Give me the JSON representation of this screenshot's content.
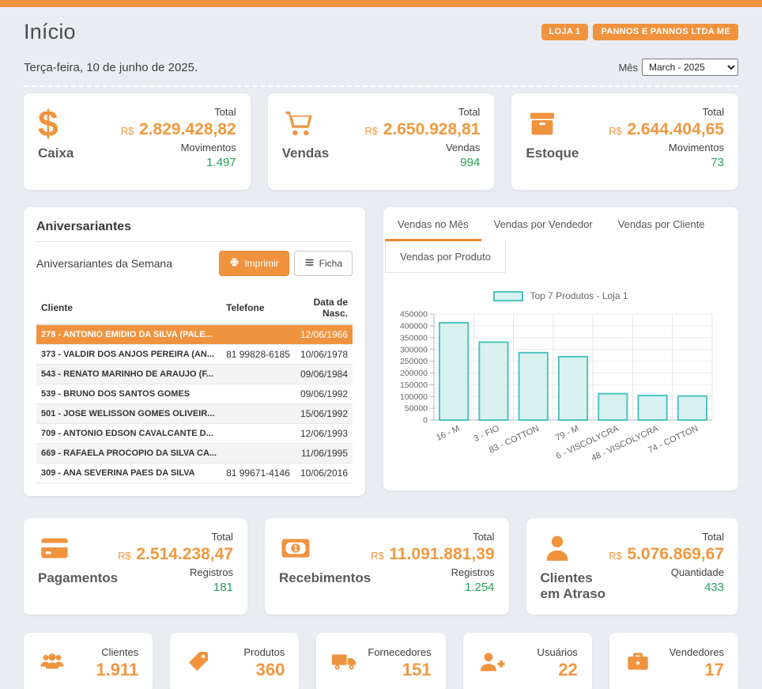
{
  "accent_color": "#f0933e",
  "green_color": "#28a05a",
  "header": {
    "title": "Início",
    "badges": [
      "LOJA 1",
      "PANNOS E PANNOS LTDA ME"
    ],
    "date": "Terça-feira, 10 de junho de 2025.",
    "month_label": "Mês",
    "month_value": "March - 2025"
  },
  "stats_top": [
    {
      "name": "Caixa",
      "icon": "dollar-icon",
      "total_label": "Total",
      "currency": "R$",
      "total": "2.829.428,82",
      "count_label": "Movimentos",
      "count": "1.497"
    },
    {
      "name": "Vendas",
      "icon": "cart-icon",
      "total_label": "Total",
      "currency": "R$",
      "total": "2.650.928,81",
      "count_label": "Vendas",
      "count": "994"
    },
    {
      "name": "Estoque",
      "icon": "box-icon",
      "total_label": "Total",
      "currency": "R$",
      "total": "2.644.404,65",
      "count_label": "Movimentos",
      "count": "73"
    }
  ],
  "stats_bottom": [
    {
      "name": "Pagamentos",
      "icon": "credit-card-icon",
      "total_label": "Total",
      "currency": "R$",
      "total": "2.514.238,47",
      "count_label": "Registros",
      "count": "181"
    },
    {
      "name": "Recebimentos",
      "icon": "money-icon",
      "total_label": "Total",
      "currency": "R$",
      "total": "11.091.881,39",
      "count_label": "Registros",
      "count": "1.254"
    },
    {
      "name": "Clientes em Atraso",
      "icon": "user-icon",
      "total_label": "Total",
      "currency": "R$",
      "total": "5.076.869,67",
      "count_label": "Quantidade",
      "count": "433"
    }
  ],
  "birthdays": {
    "title": "Aniversariantes",
    "subtitle": "Aniversariantes da Semana",
    "print_button": "Imprimir",
    "ficha_button": "Ficha",
    "columns": [
      "Cliente",
      "Telefone",
      "Data de Nasc."
    ],
    "rows": [
      {
        "client": "278 - ANTONIO EMIDIO DA SILVA (PALE...",
        "phone": "",
        "birth": "12/06/1966",
        "selected": true
      },
      {
        "client": "373 - VALDIR DOS ANJOS PEREIRA (AN...",
        "phone": "81 99828-6185",
        "birth": "10/06/1978",
        "selected": false
      },
      {
        "client": "543 - RENATO MARINHO DE ARAUJO (F...",
        "phone": "",
        "birth": "09/06/1984",
        "selected": false
      },
      {
        "client": "539 - BRUNO DOS SANTOS GOMES",
        "phone": "",
        "birth": "09/06/1992",
        "selected": false
      },
      {
        "client": "501 - JOSE WELISSON GOMES OLIVEIR...",
        "phone": "",
        "birth": "15/06/1992",
        "selected": false
      },
      {
        "client": "709 - ANTONIO EDSON CAVALCANTE D...",
        "phone": "",
        "birth": "12/06/1993",
        "selected": false
      },
      {
        "client": "669 - RAFAELA PROCOPIO DA SILVA CA...",
        "phone": "",
        "birth": "11/06/1995",
        "selected": false
      },
      {
        "client": "309 - ANA SEVERINA PAES DA SILVA",
        "phone": "81 99671-4146",
        "birth": "10/06/2016",
        "selected": false
      }
    ]
  },
  "sales_panel": {
    "tabs": [
      "Vendas no Mês",
      "Vendas por Vendedor",
      "Vendas por Cliente"
    ],
    "active_tab": "Vendas no Mês",
    "subtab": "Vendas por Produto"
  },
  "chart_data": {
    "type": "bar",
    "title": "Top 7 Produtos - Loja 1",
    "legend_label": "Top 7 Produtos - Loja 1",
    "legend_position": "top",
    "categories": [
      "16 - M",
      "3 - FIO",
      "83 - COTTON",
      "79 - M",
      "6 - VISCOLYCRA",
      "48 - VISCOLYCRA",
      "74 - COTTON"
    ],
    "values": [
      413000,
      331000,
      286000,
      269000,
      112000,
      104000,
      102000
    ],
    "xlabel": "",
    "ylabel": "",
    "ylim": [
      0,
      450000
    ],
    "ytick_step": 50000,
    "grid": true,
    "bar_fill": "#d9f2f0",
    "bar_border": "#4fc3c0"
  },
  "mini_cards": [
    {
      "label": "Clientes",
      "value": "1.911",
      "icon": "users-icon"
    },
    {
      "label": "Produtos",
      "value": "360",
      "icon": "tag-icon"
    },
    {
      "label": "Fornecedores",
      "value": "151",
      "icon": "truck-icon"
    },
    {
      "label": "Usuários",
      "value": "22",
      "icon": "user-plus-icon"
    },
    {
      "label": "Vendedores",
      "value": "17",
      "icon": "briefcase-icon"
    }
  ]
}
